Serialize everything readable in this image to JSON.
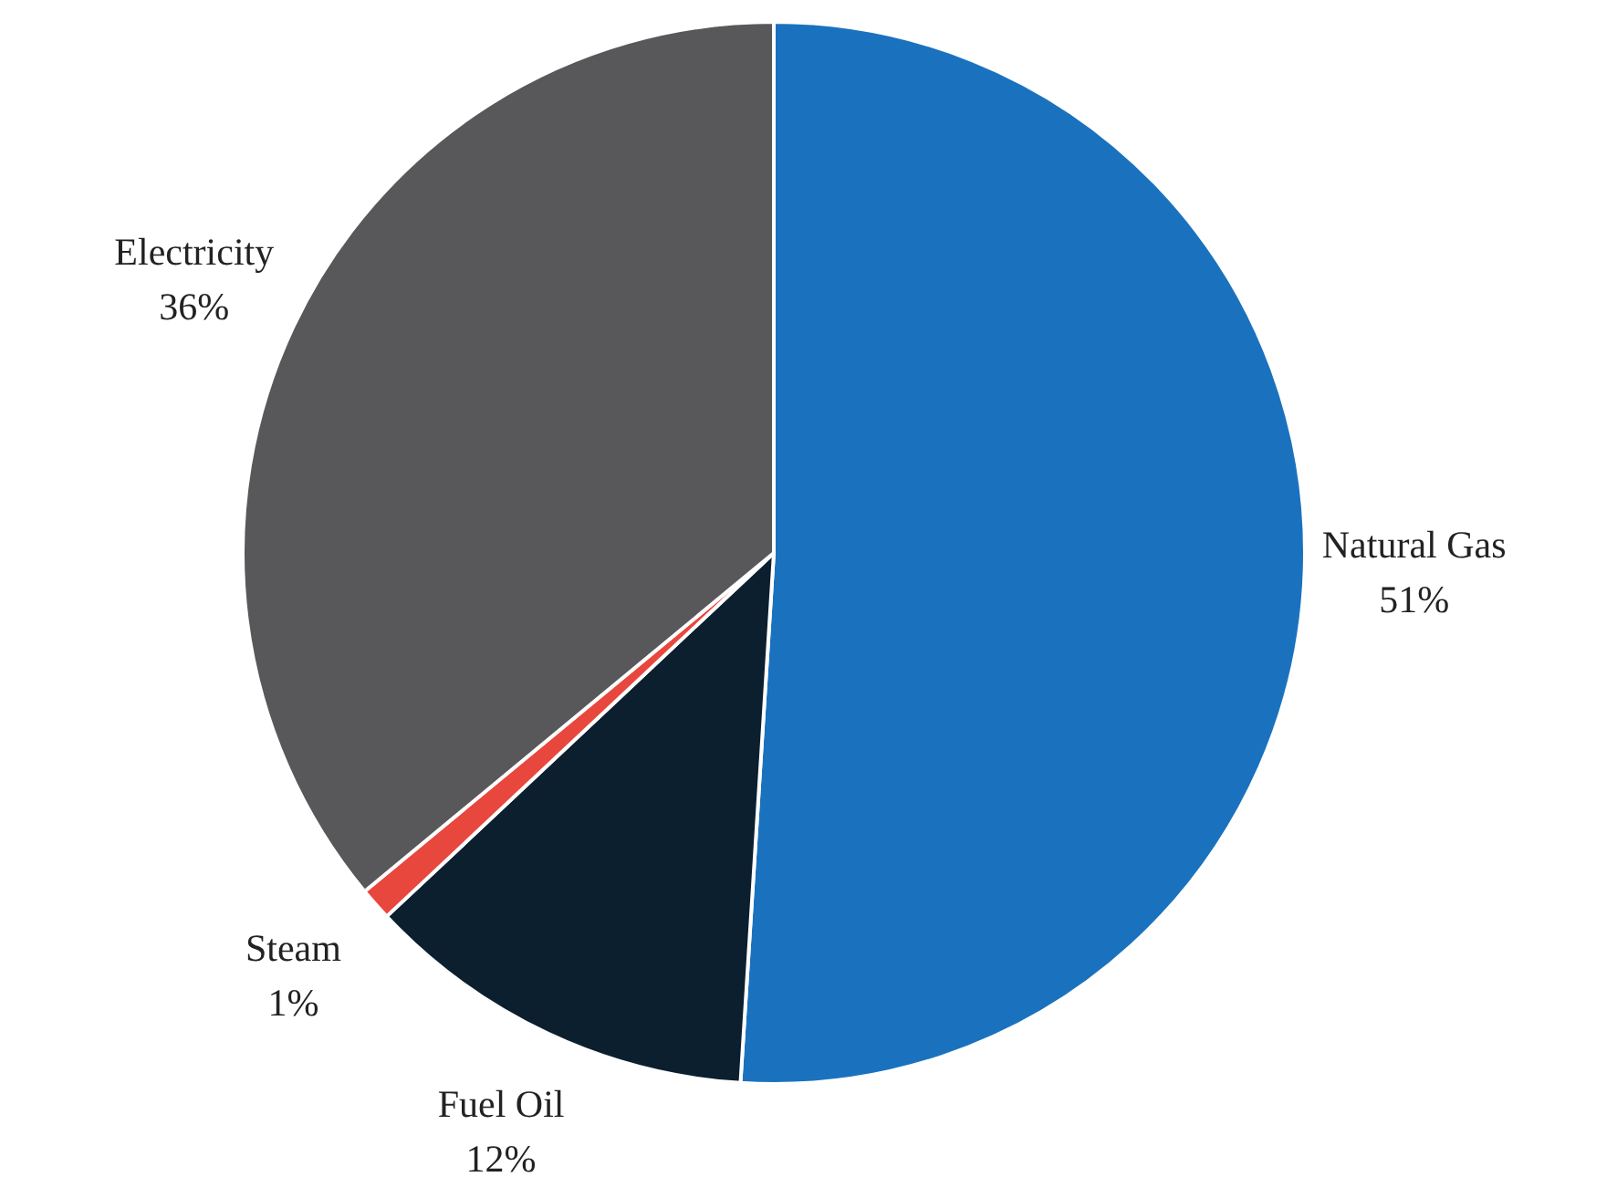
{
  "chart_data": {
    "type": "pie",
    "categories": [
      "Natural Gas",
      "Fuel Oil",
      "Steam",
      "Electricity"
    ],
    "values": [
      51,
      12,
      1,
      36
    ],
    "colors": [
      "#1a72bf",
      "#0c1f2e",
      "#e8473e",
      "#58585a"
    ],
    "value_labels": [
      "51%",
      "12%",
      "1%",
      "36%"
    ],
    "legend": false
  }
}
